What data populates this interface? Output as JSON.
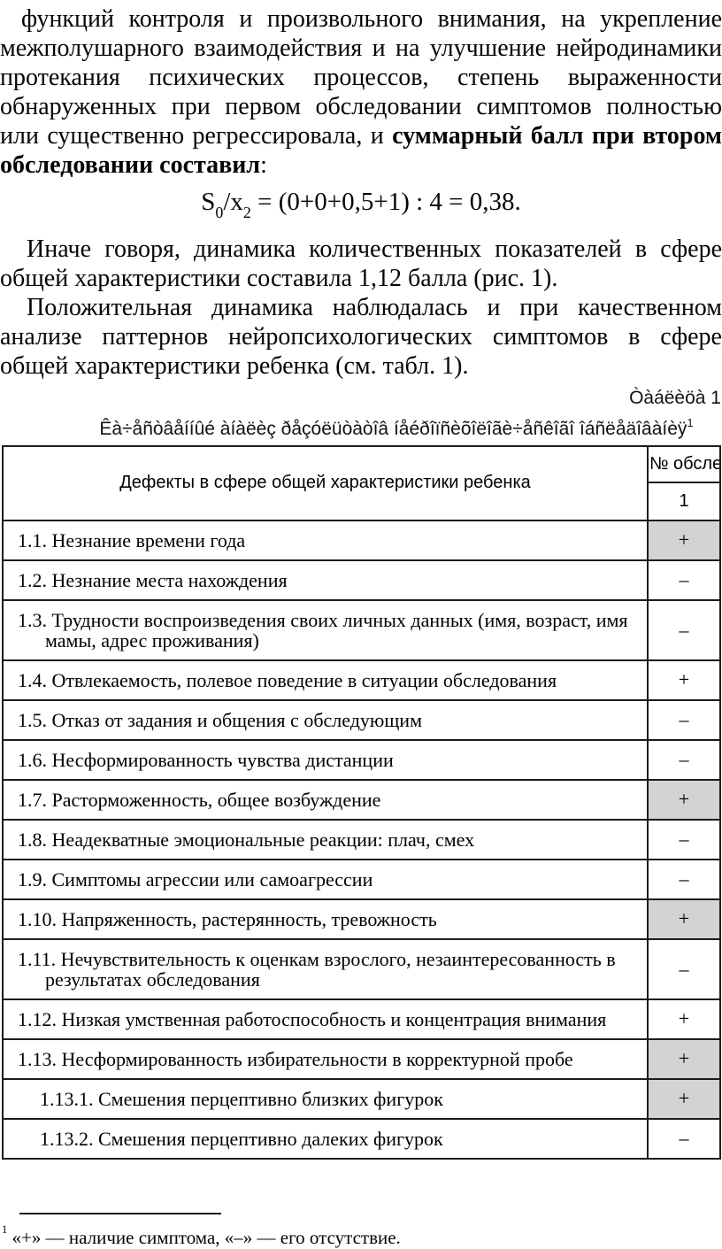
{
  "page": {
    "paragraph1": {
      "regular": "функций контроля и произвольного внимания, на укрепление межполушарного взаимодействия и на улучшение нейродинамики протекания психических процессов, степень выраженности обнаруженных при первом обследовании симптомов полностью или существенно регрессировала, и ",
      "bold": "суммарный балл при втором обследовании составил",
      "tail": ":"
    },
    "formula": {
      "t1": "S",
      "sub1": "0",
      "t2": "/x",
      "sub2": "2",
      "t3": " = (0+0+0,5+1) : 4 = 0,38."
    },
    "paragraph2": "Иначе говоря, динамика количественных показателей в сфере общей характеристики составила 1,12 балла (рис. 1).",
    "paragraph3": "Положительная динамика наблюдалась и при качественном анализе паттернов нейропсихологических симптомов в сфере общей характеристики ребенка (см. табл. 1).",
    "table_label": "Òàáëèöà 1",
    "table_caption": "Êà÷åñòâåííûé àíàëèç ðåçóëüòàòîâ íåéðîïñèõîëîãè÷åñêîãî îáñëåäîâàíèÿ",
    "table_caption_sup": "1"
  },
  "table": {
    "header_col1": "Дефекты в сфере общей характеристики ребенка",
    "header_col2": "№ обсле",
    "header_col2_sub": "1",
    "rows": [
      {
        "label": "1.1. Незнание времени года",
        "value": "+",
        "shaded": true
      },
      {
        "label": "1.2. Незнание места нахождения",
        "value": "–",
        "shaded": false
      },
      {
        "label": "1.3. Трудности воспроизведения своих личных данных (имя, возраст, имя мамы, адрес проживания)",
        "value": "–",
        "shaded": false
      },
      {
        "label": "1.4. Отвлекаемость, полевое поведение в ситуации обследования",
        "value": "+",
        "shaded": false
      },
      {
        "label": "1.5. Отказ от задания и общения с обследующим",
        "value": "–",
        "shaded": false
      },
      {
        "label": "1.6. Несформированность чувства дистанции",
        "value": "–",
        "shaded": false
      },
      {
        "label": "1.7. Расторможенность, общее возбуждение",
        "value": "+",
        "shaded": true
      },
      {
        "label": "1.8. Неадекватные эмоциональные реакции: плач, смех",
        "value": "–",
        "shaded": false
      },
      {
        "label": "1.9. Симптомы агрессии или самоагрессии",
        "value": "–",
        "shaded": false
      },
      {
        "label": "1.10. Напряженность, растерянность, тревожность",
        "value": "+",
        "shaded": true
      },
      {
        "label": "1.11. Нечувствительность к оценкам взрослого, незаинтересованность в результатах обследования",
        "value": "–",
        "shaded": false
      },
      {
        "label": "1.12. Низкая умственная работоспособность и концентрация внимания",
        "value": "+",
        "shaded": false
      },
      {
        "label": "1.13. Несформированность избирательности в корректурной пробе",
        "value": "+",
        "shaded": true
      },
      {
        "label": "1.13.1. Смешения перцептивно близких фигурок",
        "value": "+",
        "shaded": true
      },
      {
        "label": "1.13.2. Смешения перцептивно далеких фигурок",
        "value": "–",
        "shaded": false
      }
    ]
  },
  "footnote": {
    "marker": "1",
    "text": " «+» — наличие симптома, «–» — его отсутствие."
  },
  "colors": {
    "shaded_cell": "#d3d3d3",
    "table_border": "#1c1c1c"
  }
}
